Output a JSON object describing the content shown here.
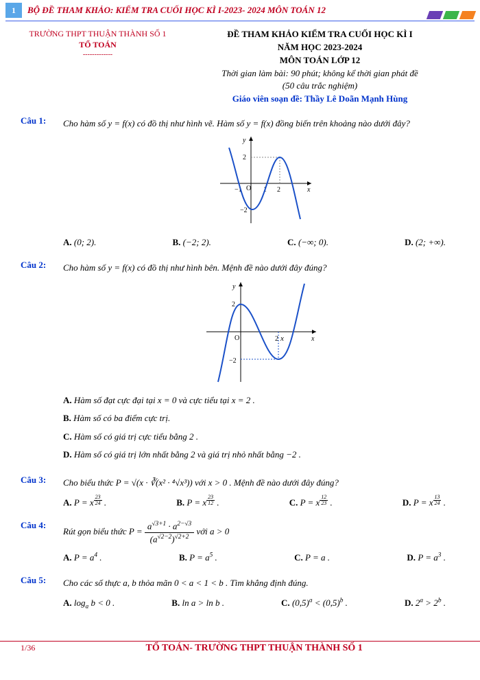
{
  "colors": {
    "accent_red": "#c00020",
    "accent_blue": "#0033cc",
    "header_underline": "#3b5ee8",
    "page_badge": "#5aa7e8",
    "bar_purple": "#6a3fb5",
    "bar_green": "#3cb54a",
    "bar_orange": "#f58220",
    "graph_stroke": "#1a50c8",
    "text": "#000000"
  },
  "header": {
    "page_number_top": "1",
    "doc_title": "BỘ ĐỀ THAM KHẢO: KIỂM TRA CUỐI HỌC KÌ I-2023- 2024 MÔN TOÁN 12"
  },
  "school": {
    "name": "TRƯỜNG THPT THUẬN THÀNH SỐ 1",
    "department": "TỔ TOÁN",
    "separator": "-------------"
  },
  "title": {
    "line1": "ĐỀ THAM KHẢO KIỂM TRA CUỐI HỌC KÌ I",
    "line2": "NĂM HỌC 2023-2024",
    "line3": "MÔN TOÁN LỚP 12",
    "line4": "Thời gian làm bài: 90 phút; không kể thời gian phát đề",
    "line5": "(50 câu trắc nghiệm)",
    "author_label": "Giáo viên soạn đề: Thầy Lê Doãn Mạnh Hùng"
  },
  "questions": [
    {
      "label": "Câu 1:",
      "text": "Cho hàm số  y = f(x)  có đồ thị như hình vẽ. Hàm số  y = f(x)  đồng biến trên khoảng nào dưới đây?",
      "graph": {
        "type": "cubic_curve",
        "x_range": [
          -2,
          3
        ],
        "y_range": [
          -3,
          3
        ],
        "x_ticks": [
          -1,
          1,
          2
        ],
        "y_ticks": [
          -2,
          2
        ],
        "stroke": "#1a50c8",
        "grid_dashed": true,
        "background": "#ffffff",
        "axes_color": "#000000",
        "width": 150,
        "height": 130,
        "local_max_y": 2,
        "local_min_y": -2
      },
      "answers": [
        {
          "label": "A.",
          "value": "(0; 2)."
        },
        {
          "label": "B.",
          "value": "(−2; 2)."
        },
        {
          "label": "C.",
          "value": "(−∞; 0)."
        },
        {
          "label": "D.",
          "value": "(2; +∞)."
        }
      ]
    },
    {
      "label": "Câu 2:",
      "text": "Cho hàm số  y = f(x)  có đồ thị như hình bên. Mệnh đề nào dưới đây đúng?",
      "graph": {
        "type": "cubic_curve_variant",
        "x_range": [
          -2,
          3.5
        ],
        "y_range": [
          -3,
          3
        ],
        "x_ticks": [
          2
        ],
        "y_ticks": [
          -2,
          2
        ],
        "stroke": "#1a50c8",
        "grid_dashed": true,
        "background": "#ffffff",
        "axes_color": "#000000",
        "width": 170,
        "height": 150,
        "local_max_at": 0,
        "local_max_y": 2,
        "local_min_at": 2,
        "local_min_y": -2
      },
      "answer_lines": [
        {
          "label": "A.",
          "value": "Hàm số đạt cực đại tại  x = 0  và cực tiểu tại  x = 2 ."
        },
        {
          "label": "B.",
          "value": "Hàm số có ba điểm cực trị."
        },
        {
          "label": "C.",
          "value": "Hàm số có giá trị cực tiểu bằng  2 ."
        },
        {
          "label": "D.",
          "value": "Hàm số có giá trị lớn nhất bằng  2  và giá trị nhỏ nhất bằng  −2 ."
        }
      ]
    },
    {
      "label": "Câu 3:",
      "text_html": "Cho biểu thức  P = √(x · ∛(x² · ⁴√x³))   với  x > 0 . Mệnh đề nào dưới đây đúng?",
      "answers": [
        {
          "label": "A.",
          "value_html": "P = x<sup><span class='frac'><span class='num'>23</span><span class='den'>24</span></span></sup> ."
        },
        {
          "label": "B.",
          "value_html": "P = x<sup><span class='frac'><span class='num'>23</span><span class='den'>12</span></span></sup> ."
        },
        {
          "label": "C.",
          "value_html": "P = x<sup><span class='frac'><span class='num'>12</span><span class='den'>23</span></span></sup> ."
        },
        {
          "label": "D.",
          "value_html": "P = x<sup><span class='frac'><span class='num'>13</span><span class='den'>24</span></span></sup> ."
        }
      ]
    },
    {
      "label": "Câu 4:",
      "text_html": "Rút gọn biểu thức  P = <span class='bigfrac'><span class='bnum'>a<sup>√3+1</sup> · a<sup>2−√3</sup></span><span class='bden'>(a<sup>√2−2</sup>)<sup>√2+2</sup></span></span>   với  a > 0",
      "answers": [
        {
          "label": "A.",
          "value_html": "P = a<sup>4</sup> ."
        },
        {
          "label": "B.",
          "value_html": "P = a<sup>5</sup> ."
        },
        {
          "label": "C.",
          "value_html": "P = a ."
        },
        {
          "label": "D.",
          "value_html": "P = a<sup>3</sup> ."
        }
      ]
    },
    {
      "label": "Câu 5:",
      "text": "Cho các số thực  a, b  thỏa mãn  0 < a < 1 < b . Tìm khẳng định đúng.",
      "answers": [
        {
          "label": "A.",
          "value_html": "log<sub>a</sub> b < 0 ."
        },
        {
          "label": "B.",
          "value_html": "ln a > ln b ."
        },
        {
          "label": "C.",
          "value_html": "(0,5)<sup>a</sup> < (0,5)<sup>b</sup> ."
        },
        {
          "label": "D.",
          "value_html": "2<sup>a</sup> > 2<sup>b</sup> ."
        }
      ]
    }
  ],
  "footer": {
    "page": "1/36",
    "text": "TỔ TOÁN- TRƯỜNG THPT THUẬN THÀNH SỐ 1"
  }
}
